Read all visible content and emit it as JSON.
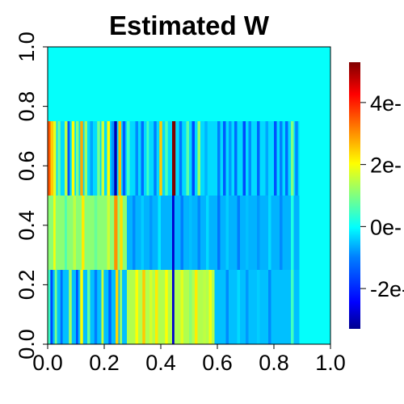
{
  "chart_data": {
    "type": "heatmap",
    "title": "Estimated W",
    "xlabel": "",
    "ylabel": "",
    "xlim": [
      0,
      1
    ],
    "ylim": [
      0,
      1
    ],
    "x_ticks": [
      "0.0",
      "0.2",
      "0.4",
      "0.6",
      "0.8",
      "1.0"
    ],
    "y_ticks": [
      "0.0",
      "0.2",
      "0.4",
      "0.6",
      "0.8",
      "1.0"
    ],
    "colorbar": {
      "labels": [
        "-2e-",
        "0e-",
        "2e-",
        "4e-"
      ],
      "range": [
        -3.3,
        5.3
      ],
      "palette": [
        "#00008F",
        "#0000FF",
        "#0080FF",
        "#00FFFF",
        "#80FF80",
        "#FFFF00",
        "#FF8000",
        "#FF0000",
        "#800000"
      ]
    },
    "background_value": 0,
    "grid": false,
    "bands": [
      {
        "y_range": [
          0.75,
          1.0
        ],
        "x_range": [
          0,
          1.0
        ],
        "base": 0,
        "stripes": []
      },
      {
        "y_range": [
          0.5,
          0.75
        ],
        "x_range": [
          0,
          0.89
        ],
        "base": -0.3,
        "stripes": [
          {
            "x": 0.0,
            "w": 0.01,
            "v": 3.5
          },
          {
            "x": 0.01,
            "w": 0.01,
            "v": 2.5
          },
          {
            "x": 0.02,
            "w": 0.01,
            "v": 1.8
          },
          {
            "x": 0.035,
            "w": 0.01,
            "v": 0.8
          },
          {
            "x": 0.06,
            "w": 0.01,
            "v": 1.5
          },
          {
            "x": 0.07,
            "w": 0.008,
            "v": -1.5
          },
          {
            "x": 0.085,
            "w": 0.01,
            "v": 2.0
          },
          {
            "x": 0.1,
            "w": 0.01,
            "v": 1.0
          },
          {
            "x": 0.115,
            "w": 0.01,
            "v": 2.8
          },
          {
            "x": 0.13,
            "w": 0.01,
            "v": 1.2
          },
          {
            "x": 0.15,
            "w": 0.01,
            "v": -0.7
          },
          {
            "x": 0.175,
            "w": 0.01,
            "v": 0.9
          },
          {
            "x": 0.19,
            "w": 0.01,
            "v": 1.6
          },
          {
            "x": 0.21,
            "w": 0.01,
            "v": 2.0
          },
          {
            "x": 0.225,
            "w": 0.01,
            "v": -0.8
          },
          {
            "x": 0.235,
            "w": 0.01,
            "v": -3.0
          },
          {
            "x": 0.25,
            "w": 0.01,
            "v": 2.6
          },
          {
            "x": 0.265,
            "w": 0.01,
            "v": -1.4
          },
          {
            "x": 0.28,
            "w": 0.01,
            "v": 0.5
          },
          {
            "x": 0.31,
            "w": 0.01,
            "v": -0.9
          },
          {
            "x": 0.33,
            "w": 0.01,
            "v": -1.2
          },
          {
            "x": 0.35,
            "w": 0.008,
            "v": 0.5
          },
          {
            "x": 0.375,
            "w": 0.01,
            "v": -1.0
          },
          {
            "x": 0.395,
            "w": 0.01,
            "v": 2.5
          },
          {
            "x": 0.415,
            "w": 0.01,
            "v": 0.6
          },
          {
            "x": 0.44,
            "w": 0.012,
            "v": 5.3
          },
          {
            "x": 0.465,
            "w": 0.01,
            "v": -1.1
          },
          {
            "x": 0.49,
            "w": 0.01,
            "v": 0.7
          },
          {
            "x": 0.51,
            "w": 0.01,
            "v": -1.6
          },
          {
            "x": 0.53,
            "w": 0.01,
            "v": 1.2
          },
          {
            "x": 0.555,
            "w": 0.01,
            "v": -0.6
          },
          {
            "x": 0.6,
            "w": 0.01,
            "v": -1.0
          },
          {
            "x": 0.62,
            "w": 0.01,
            "v": -1.4
          },
          {
            "x": 0.64,
            "w": 0.01,
            "v": -0.8
          },
          {
            "x": 0.66,
            "w": 0.01,
            "v": -1.2
          },
          {
            "x": 0.69,
            "w": 0.01,
            "v": -1.6
          },
          {
            "x": 0.71,
            "w": 0.01,
            "v": -0.9
          },
          {
            "x": 0.74,
            "w": 0.01,
            "v": -1.3
          },
          {
            "x": 0.77,
            "w": 0.01,
            "v": -0.7
          },
          {
            "x": 0.8,
            "w": 0.01,
            "v": -1.5
          },
          {
            "x": 0.82,
            "w": 0.01,
            "v": -1.0
          },
          {
            "x": 0.84,
            "w": 0.01,
            "v": -1.2
          },
          {
            "x": 0.86,
            "w": 0.01,
            "v": 1.0
          },
          {
            "x": 0.875,
            "w": 0.01,
            "v": -0.9
          }
        ]
      },
      {
        "y_range": [
          0.25,
          0.5
        ],
        "x_range": [
          0,
          0.89
        ],
        "base": -0.6,
        "stripes": [
          {
            "x": 0.0,
            "w": 0.28,
            "v": 1.1
          },
          {
            "x": 0.02,
            "w": 0.008,
            "v": 1.9
          },
          {
            "x": 0.06,
            "w": 0.008,
            "v": 0.6
          },
          {
            "x": 0.09,
            "w": 0.01,
            "v": 1.5
          },
          {
            "x": 0.12,
            "w": 0.01,
            "v": 2.2
          },
          {
            "x": 0.165,
            "w": 0.01,
            "v": 0.8
          },
          {
            "x": 0.21,
            "w": 0.01,
            "v": 1.6
          },
          {
            "x": 0.235,
            "w": 0.012,
            "v": 3.0
          },
          {
            "x": 0.255,
            "w": 0.01,
            "v": 2.3
          },
          {
            "x": 0.3,
            "w": 0.01,
            "v": -0.9
          },
          {
            "x": 0.33,
            "w": 0.01,
            "v": -0.4
          },
          {
            "x": 0.36,
            "w": 0.01,
            "v": -0.8
          },
          {
            "x": 0.39,
            "w": 0.01,
            "v": -0.2
          },
          {
            "x": 0.44,
            "w": 0.008,
            "v": -2.8
          },
          {
            "x": 0.47,
            "w": 0.01,
            "v": -1.0
          },
          {
            "x": 0.5,
            "w": 0.01,
            "v": -0.5
          },
          {
            "x": 0.53,
            "w": 0.01,
            "v": -0.9
          },
          {
            "x": 0.56,
            "w": 0.01,
            "v": -0.3
          },
          {
            "x": 0.6,
            "w": 0.01,
            "v": -1.1
          },
          {
            "x": 0.63,
            "w": 0.01,
            "v": -0.4
          },
          {
            "x": 0.67,
            "w": 0.01,
            "v": -1.0
          },
          {
            "x": 0.7,
            "w": 0.01,
            "v": -0.5
          },
          {
            "x": 0.74,
            "w": 0.01,
            "v": -0.8
          },
          {
            "x": 0.78,
            "w": 0.01,
            "v": -0.3
          },
          {
            "x": 0.82,
            "w": 0.01,
            "v": -0.9
          },
          {
            "x": 0.86,
            "w": 0.01,
            "v": 0.2
          }
        ]
      },
      {
        "y_range": [
          0.0,
          0.25
        ],
        "x_range": [
          0,
          0.89
        ],
        "base": -0.5,
        "stripes": [
          {
            "x": 0.0,
            "w": 0.008,
            "v": 0.5
          },
          {
            "x": 0.01,
            "w": 0.008,
            "v": -1.6
          },
          {
            "x": 0.025,
            "w": 0.008,
            "v": 0.9
          },
          {
            "x": 0.045,
            "w": 0.008,
            "v": -1.2
          },
          {
            "x": 0.075,
            "w": 0.01,
            "v": 1.3
          },
          {
            "x": 0.1,
            "w": 0.008,
            "v": -1.5
          },
          {
            "x": 0.115,
            "w": 0.01,
            "v": 2.0
          },
          {
            "x": 0.14,
            "w": 0.01,
            "v": 0.8
          },
          {
            "x": 0.165,
            "w": 0.01,
            "v": -1.0
          },
          {
            "x": 0.19,
            "w": 0.008,
            "v": 1.6
          },
          {
            "x": 0.215,
            "w": 0.01,
            "v": -1.3
          },
          {
            "x": 0.24,
            "w": 0.01,
            "v": 2.4
          },
          {
            "x": 0.255,
            "w": 0.008,
            "v": 1.2
          },
          {
            "x": 0.28,
            "w": 0.31,
            "v": 1.4
          },
          {
            "x": 0.31,
            "w": 0.01,
            "v": 2.0
          },
          {
            "x": 0.335,
            "w": 0.01,
            "v": 2.5
          },
          {
            "x": 0.36,
            "w": 0.01,
            "v": 1.7
          },
          {
            "x": 0.38,
            "w": 0.01,
            "v": 2.2
          },
          {
            "x": 0.415,
            "w": 0.01,
            "v": 2.0
          },
          {
            "x": 0.44,
            "w": 0.008,
            "v": -2.8
          },
          {
            "x": 0.47,
            "w": 0.01,
            "v": 1.8
          },
          {
            "x": 0.5,
            "w": 0.01,
            "v": 1.1
          },
          {
            "x": 0.52,
            "w": 0.01,
            "v": 2.2
          },
          {
            "x": 0.55,
            "w": 0.01,
            "v": 1.5
          },
          {
            "x": 0.57,
            "w": 0.01,
            "v": 1.9
          },
          {
            "x": 0.63,
            "w": 0.01,
            "v": -0.9
          },
          {
            "x": 0.67,
            "w": 0.01,
            "v": -0.3
          },
          {
            "x": 0.7,
            "w": 0.01,
            "v": -0.8
          },
          {
            "x": 0.74,
            "w": 0.01,
            "v": -0.4
          },
          {
            "x": 0.78,
            "w": 0.01,
            "v": -0.9
          },
          {
            "x": 0.82,
            "w": 0.01,
            "v": -0.5
          },
          {
            "x": 0.86,
            "w": 0.01,
            "v": 0.5
          }
        ]
      }
    ]
  }
}
